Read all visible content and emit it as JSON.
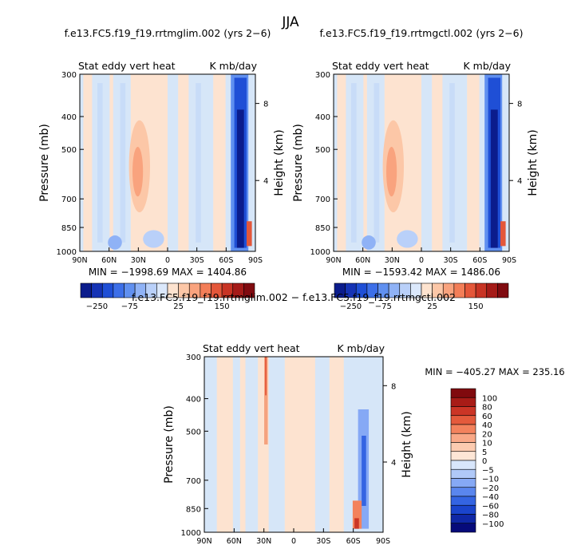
{
  "figure": {
    "title": "JJA"
  },
  "colors": {
    "ctl_scale": [
      "#0b1c8c",
      "#1533b5",
      "#1f4fd6",
      "#3d6fe8",
      "#6090f0",
      "#8fb2f6",
      "#b9d0f9",
      "#dbe8fb",
      "#fde3cf",
      "#fcc7a7",
      "#f9a37e",
      "#f37e58",
      "#e4573a",
      "#c83424",
      "#a51b18",
      "#800b10"
    ],
    "diff_scale": [
      "#060a7a",
      "#0f27a6",
      "#1a44cc",
      "#3464e2",
      "#5a86ee",
      "#86a9f5",
      "#b0c9f8",
      "#d8e6fb",
      "#fde6d6",
      "#fccbb0",
      "#f9a887",
      "#f3825d",
      "#e45a3c",
      "#cb3526",
      "#a81c17",
      "#800a0e"
    ],
    "background_field": "#d6e6f8",
    "positive_field": "#fde3d0"
  },
  "chart_data": [
    {
      "type": "heatmap",
      "title": "f.e13.FC5.f19_f19.rrtmglim.002 (yrs 2−6)",
      "subtitle_left": "Stat eddy vert heat",
      "subtitle_right": "K mb/day",
      "ylabel": "Pressure (mb)",
      "ylabel_right": "Height (km)",
      "x_ticks": [
        "90N",
        "60N",
        "30N",
        "0",
        "30S",
        "60S",
        "90S"
      ],
      "y_ticks": [
        "300",
        "400",
        "500",
        "700",
        "850",
        "1000"
      ],
      "y_ticks_right": [
        "8",
        "4"
      ],
      "stats": "MIN = −1998.69   MAX = 1404.86",
      "min": -1998.69,
      "max": 1404.86,
      "colorbar_labels": [
        "−250",
        "−75",
        "25",
        "150"
      ]
    },
    {
      "type": "heatmap",
      "title": "f.e13.FC5.f19_f19.rrtmgctl.002 (yrs 2−6)",
      "subtitle_left": "Stat eddy vert heat",
      "subtitle_right": "K mb/day",
      "ylabel": "Pressure (mb)",
      "ylabel_right": "Height (km)",
      "x_ticks": [
        "90N",
        "60N",
        "30N",
        "0",
        "30S",
        "60S",
        "90S"
      ],
      "y_ticks": [
        "300",
        "400",
        "500",
        "700",
        "850",
        "1000"
      ],
      "y_ticks_right": [
        "8",
        "4"
      ],
      "stats": "MIN = −1593.42   MAX = 1486.06",
      "min": -1593.42,
      "max": 1486.06,
      "colorbar_labels": [
        "−250",
        "−75",
        "25",
        "150"
      ]
    },
    {
      "type": "heatmap",
      "title": "f.e13.FC5.f19_f19.rrtmglim.002 − f.e13.FC5.f19_f19.rrtmgctl.002",
      "subtitle_left": "Stat eddy vert heat",
      "subtitle_right": "K mb/day",
      "ylabel": "Pressure (mb)",
      "ylabel_right": "Height (km)",
      "x_ticks": [
        "90N",
        "60N",
        "30N",
        "0",
        "30S",
        "60S",
        "90S"
      ],
      "y_ticks": [
        "300",
        "400",
        "500",
        "700",
        "850",
        "1000"
      ],
      "y_ticks_right": [
        "8",
        "4"
      ],
      "stats": "MIN = −405.27   MAX = 235.16",
      "min": -405.27,
      "max": 235.16,
      "colorbar_labels": [
        "100",
        "80",
        "60",
        "40",
        "20",
        "10",
        "5",
        "0",
        "−5",
        "−10",
        "−20",
        "−40",
        "−60",
        "−80",
        "−100"
      ]
    }
  ]
}
